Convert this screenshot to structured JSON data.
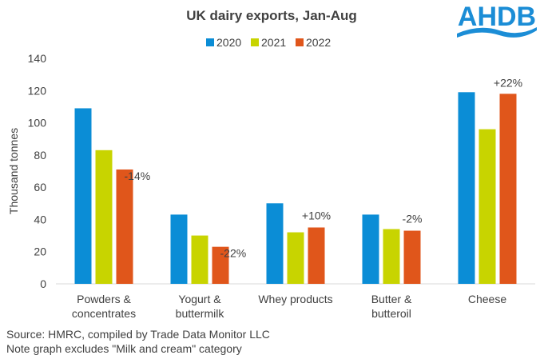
{
  "chart_data": {
    "type": "bar",
    "title": "UK dairy exports, Jan-Aug",
    "ylabel": "Thousand tonnes",
    "xlabel": "",
    "ylim": [
      0,
      140
    ],
    "yticks": [
      0,
      20,
      40,
      60,
      80,
      100,
      120,
      140
    ],
    "grid": false,
    "legend_position": "top",
    "categories": [
      [
        "Powders &",
        "concentrates"
      ],
      [
        "Yogurt &",
        "buttermilk"
      ],
      [
        "Whey products"
      ],
      [
        "Butter &",
        "butteroil"
      ],
      [
        "Cheese"
      ]
    ],
    "series": [
      {
        "name": "2020",
        "color": "#0B8DD6",
        "values": [
          109,
          43,
          50,
          43,
          119
        ]
      },
      {
        "name": "2021",
        "color": "#C8D400",
        "values": [
          83,
          30,
          32,
          34,
          96
        ]
      },
      {
        "name": "2022",
        "color": "#E0561B",
        "values": [
          71,
          23,
          35,
          33,
          118
        ]
      }
    ],
    "annotations": [
      "-14%",
      "-22%",
      "+10%",
      "-2%",
      "+22%"
    ]
  },
  "logo": {
    "text": "AHDB",
    "color": "#1B8DD6"
  },
  "footer": {
    "source": "Source: HMRC, compiled by Trade Data Monitor LLC",
    "note": "Note graph excludes \"Milk and cream\" category"
  }
}
